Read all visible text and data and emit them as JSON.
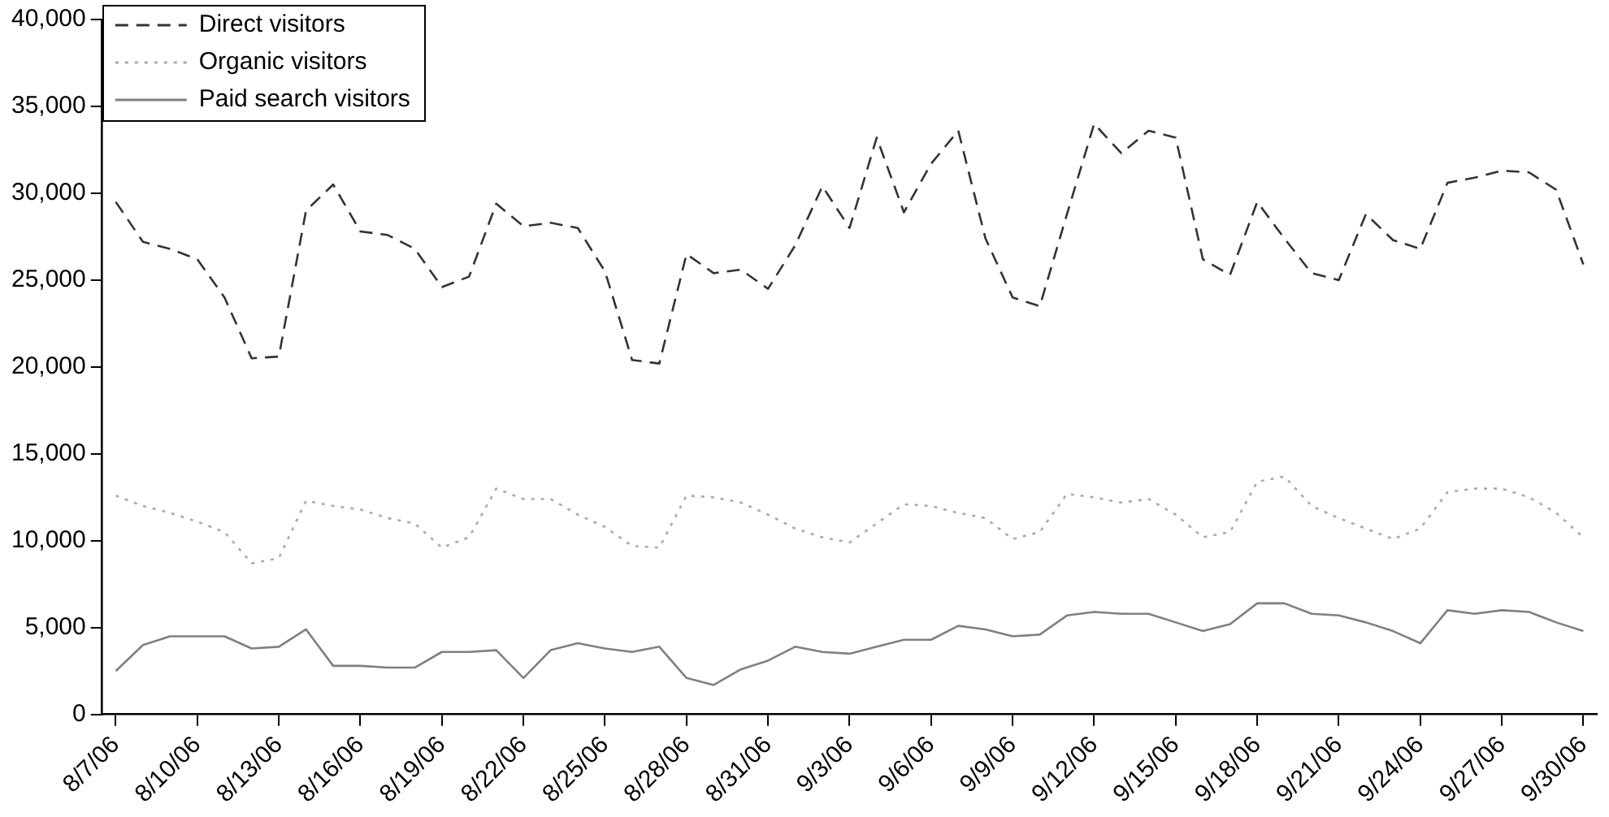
{
  "chart_data": {
    "type": "line",
    "categories": [
      "8/7/06",
      null,
      null,
      "8/10/06",
      null,
      null,
      "8/13/06",
      null,
      null,
      "8/16/06",
      null,
      null,
      "8/19/06",
      null,
      null,
      "8/22/06",
      null,
      null,
      "8/25/06",
      null,
      null,
      "8/28/06",
      null,
      null,
      "8/31/06",
      null,
      null,
      "9/3/06",
      null,
      null,
      "9/6/06",
      null,
      null,
      "9/9/06",
      null,
      null,
      "9/12/06",
      null,
      null,
      "9/15/06",
      null,
      null,
      "9/18/06",
      null,
      null,
      "9/21/06",
      null,
      null,
      "9/24/06",
      null,
      null,
      "9/27/06",
      null,
      null,
      "9/30/06"
    ],
    "series": [
      {
        "name": "Direct visitors",
        "color": "#333333",
        "line_style": "dashed",
        "values": [
          29500,
          27200,
          26800,
          26200,
          24000,
          20500,
          20600,
          29000,
          30500,
          27800,
          27600,
          26800,
          24600,
          25200,
          29400,
          28100,
          28300,
          28000,
          25500,
          20400,
          20200,
          26500,
          25400,
          25600,
          24500,
          27000,
          30400,
          28000,
          33200,
          28900,
          31700,
          33600,
          27400,
          24000,
          23500,
          28800,
          34000,
          32300,
          33600,
          33200,
          26200,
          25300,
          29500,
          27400,
          25400,
          25000,
          28800,
          27300,
          26800,
          30600,
          30900,
          31300,
          31200,
          30200,
          25900
        ]
      },
      {
        "name": "Organic visitors",
        "color": "#aaaaaa",
        "line_style": "dotted",
        "values": [
          12600,
          12000,
          11600,
          11100,
          10500,
          8700,
          9000,
          12300,
          12000,
          11800,
          11300,
          11000,
          9600,
          10200,
          13000,
          12400,
          12400,
          11500,
          10800,
          9700,
          9600,
          12600,
          12500,
          12200,
          11500,
          10700,
          10200,
          9900,
          11000,
          12100,
          12000,
          11600,
          11300,
          10100,
          10500,
          12700,
          12500,
          12200,
          12400,
          11500,
          10200,
          10500,
          13400,
          13700,
          12000,
          11300,
          10700,
          10100,
          10700,
          12800,
          13000,
          13000,
          12500,
          11600,
          10200
        ]
      },
      {
        "name": "Paid search visitors",
        "color": "#808080",
        "line_style": "solid",
        "values": [
          2500,
          4000,
          4500,
          4500,
          4500,
          3800,
          3900,
          4900,
          2800,
          2800,
          2700,
          2700,
          3600,
          3600,
          3700,
          2100,
          3700,
          4100,
          3800,
          3600,
          3900,
          2100,
          1700,
          2600,
          3100,
          3900,
          3600,
          3500,
          3900,
          4300,
          4300,
          5100,
          4900,
          4500,
          4600,
          5700,
          5900,
          5800,
          5800,
          5300,
          4800,
          5200,
          6400,
          6400,
          5800,
          5700,
          5300,
          4800,
          4100,
          6000,
          5800,
          6000,
          5900,
          5300,
          4800
        ]
      }
    ],
    "ylim": [
      0,
      40000
    ],
    "yticks": [
      0,
      {
        "value": 5000,
        "label": "5,000"
      },
      {
        "value": 10000,
        "label": "10,000"
      },
      {
        "value": 15000,
        "label": "15,000"
      },
      {
        "value": 20000,
        "label": "20,000"
      },
      {
        "value": 25000,
        "label": "25,000"
      },
      {
        "value": 30000,
        "label": "30,000"
      },
      {
        "value": 35000,
        "label": "35,000"
      },
      {
        "value": 40000,
        "label": "40,000"
      }
    ],
    "grid": false,
    "legend": "top left",
    "marker": "none"
  }
}
